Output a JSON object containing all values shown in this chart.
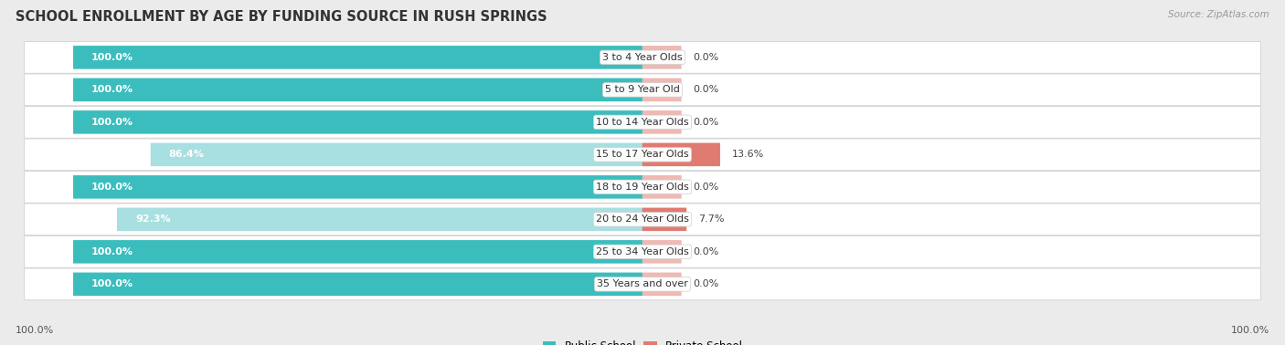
{
  "title": "SCHOOL ENROLLMENT BY AGE BY FUNDING SOURCE IN RUSH SPRINGS",
  "source": "Source: ZipAtlas.com",
  "categories": [
    "3 to 4 Year Olds",
    "5 to 9 Year Old",
    "10 to 14 Year Olds",
    "15 to 17 Year Olds",
    "18 to 19 Year Olds",
    "20 to 24 Year Olds",
    "25 to 34 Year Olds",
    "35 Years and over"
  ],
  "public_values": [
    100.0,
    100.0,
    100.0,
    86.4,
    100.0,
    92.3,
    100.0,
    100.0
  ],
  "private_values": [
    0.0,
    0.0,
    0.0,
    13.6,
    0.0,
    7.7,
    0.0,
    0.0
  ],
  "public_color": "#3bbdbe",
  "public_color_light": "#a8dfe0",
  "private_color": "#e07b72",
  "private_color_light": "#f0b8b3",
  "row_bg_color": "#ffffff",
  "row_border_color": "#d0d0d0",
  "bg_color": "#ebebeb",
  "title_fontsize": 10.5,
  "label_fontsize": 8.0,
  "value_fontsize": 8.0,
  "legend_fontsize": 8.5,
  "x_axis_label_left": "100.0%",
  "x_axis_label_right": "100.0%"
}
